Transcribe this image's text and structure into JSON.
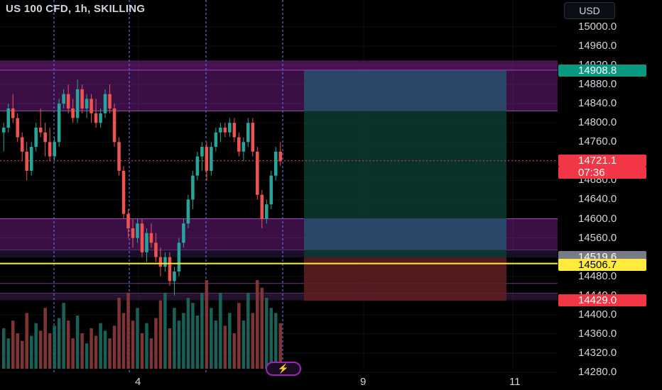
{
  "chart": {
    "title": "US 100 CFD, 1h, SKILLING",
    "currency": "USD"
  },
  "price_axis": {
    "ticks": [
      "15000.0",
      "14960.0",
      "14920.0",
      "14880.0",
      "14840.0",
      "14800.0",
      "14760.0",
      "14720.0",
      "14680.0",
      "14640.0",
      "14600.0",
      "14560.0",
      "14520.0",
      "14480.0",
      "14440.0",
      "14400.0",
      "14360.0",
      "14320.0",
      "14280.0"
    ]
  },
  "time_axis": {
    "labels": [
      "4",
      "9",
      "11"
    ]
  },
  "price_tags": {
    "target": {
      "text": "14908.8",
      "bg": "#089981",
      "fg": "#ffffff"
    },
    "current_price": {
      "text": "14721.1",
      "bg": "#f23645",
      "fg": "#ffffff"
    },
    "countdown": {
      "text": "07:36",
      "bg": "#f23645",
      "fg": "#ffffff"
    },
    "entry": {
      "text": "14519.6",
      "bg": "#787b86",
      "fg": "#ffffff"
    },
    "level": {
      "text": "14506.7",
      "bg": "#ffeb3b",
      "fg": "#000000"
    },
    "stop": {
      "text": "14429.0",
      "bg": "#f23645",
      "fg": "#ffffff"
    }
  },
  "colors": {
    "bull": "#26a69a",
    "bear": "#ef5350",
    "zone": "#9c27b0",
    "yellow_line": "#ffeb3b",
    "profit_zone": "#0b3b33",
    "loss_zone": "#5b1f22"
  },
  "icons": {
    "bolt": "lightning-icon"
  },
  "chart_data": {
    "type": "candlestick",
    "symbol": "US 100 CFD",
    "interval": "1h",
    "ylim": [
      14270,
      15020
    ],
    "levels": {
      "target": 14908.8,
      "current": 14721.1,
      "entry": 14519.6,
      "yellow": 14506.7,
      "stop": 14429.0
    },
    "zones": [
      {
        "from": 14825,
        "to": 14910
      },
      {
        "from": 14535,
        "to": 14600
      }
    ],
    "candles": [
      [
        14780,
        14800,
        14740,
        14790
      ],
      [
        14790,
        14840,
        14780,
        14830
      ],
      [
        14830,
        14860,
        14800,
        14810
      ],
      [
        14810,
        14820,
        14760,
        14770
      ],
      [
        14770,
        14780,
        14720,
        14740
      ],
      [
        14740,
        14760,
        14680,
        14700
      ],
      [
        14700,
        14760,
        14690,
        14750
      ],
      [
        14750,
        14800,
        14740,
        14790
      ],
      [
        14790,
        14830,
        14770,
        14780
      ],
      [
        14780,
        14800,
        14730,
        14760
      ],
      [
        14760,
        14790,
        14720,
        14730
      ],
      [
        14730,
        14770,
        14720,
        14760
      ],
      [
        14760,
        14850,
        14750,
        14840
      ],
      [
        14840,
        14870,
        14830,
        14860
      ],
      [
        14860,
        14880,
        14820,
        14830
      ],
      [
        14830,
        14850,
        14800,
        14810
      ],
      [
        14810,
        14890,
        14800,
        14870
      ],
      [
        14870,
        14880,
        14820,
        14830
      ],
      [
        14830,
        14860,
        14810,
        14850
      ],
      [
        14850,
        14860,
        14800,
        14820
      ],
      [
        14820,
        14850,
        14790,
        14800
      ],
      [
        14800,
        14830,
        14790,
        14820
      ],
      [
        14820,
        14870,
        14810,
        14860
      ],
      [
        14860,
        14880,
        14820,
        14830
      ],
      [
        14830,
        14840,
        14750,
        14760
      ],
      [
        14760,
        14770,
        14690,
        14700
      ],
      [
        14700,
        14710,
        14600,
        14610
      ],
      [
        14610,
        14620,
        14560,
        14580
      ],
      [
        14580,
        14600,
        14540,
        14560
      ],
      [
        14560,
        14600,
        14550,
        14590
      ],
      [
        14590,
        14600,
        14520,
        14530
      ],
      [
        14530,
        14580,
        14510,
        14570
      ],
      [
        14570,
        14590,
        14540,
        14550
      ],
      [
        14550,
        14570,
        14510,
        14520
      ],
      [
        14520,
        14540,
        14480,
        14500
      ],
      [
        14500,
        14530,
        14490,
        14520
      ],
      [
        14520,
        14530,
        14460,
        14470
      ],
      [
        14470,
        14500,
        14440,
        14490
      ],
      [
        14490,
        14560,
        14480,
        14550
      ],
      [
        14550,
        14600,
        14540,
        14590
      ],
      [
        14590,
        14650,
        14580,
        14640
      ],
      [
        14640,
        14700,
        14620,
        14690
      ],
      [
        14690,
        14740,
        14680,
        14730
      ],
      [
        14730,
        14760,
        14700,
        14750
      ],
      [
        14750,
        14760,
        14680,
        14700
      ],
      [
        14700,
        14760,
        14690,
        14750
      ],
      [
        14750,
        14790,
        14740,
        14780
      ],
      [
        14780,
        14800,
        14760,
        14790
      ],
      [
        14790,
        14800,
        14770,
        14780
      ],
      [
        14780,
        14810,
        14770,
        14800
      ],
      [
        14800,
        14810,
        14760,
        14770
      ],
      [
        14770,
        14780,
        14730,
        14740
      ],
      [
        14740,
        14770,
        14720,
        14760
      ],
      [
        14760,
        14810,
        14750,
        14800
      ],
      [
        14800,
        14810,
        14730,
        14740
      ],
      [
        14740,
        14750,
        14640,
        14650
      ],
      [
        14650,
        14660,
        14580,
        14600
      ],
      [
        14600,
        14640,
        14590,
        14630
      ],
      [
        14630,
        14700,
        14620,
        14690
      ],
      [
        14690,
        14750,
        14680,
        14740
      ],
      [
        14740,
        14760,
        14710,
        14720
      ]
    ],
    "volume": [
      80,
      60,
      95,
      70,
      55,
      110,
      65,
      90,
      75,
      120,
      70,
      85,
      100,
      130,
      95,
      60,
      105,
      70,
      50,
      80,
      65,
      90,
      75,
      60,
      85,
      140,
      110,
      150,
      95,
      120,
      70,
      90,
      60,
      100,
      135,
      150,
      80,
      120,
      95,
      110,
      140,
      130,
      105,
      150,
      175,
      120,
      95,
      150,
      85,
      110,
      70,
      130,
      95,
      150,
      110,
      175,
      160,
      140,
      120,
      110,
      90
    ]
  }
}
